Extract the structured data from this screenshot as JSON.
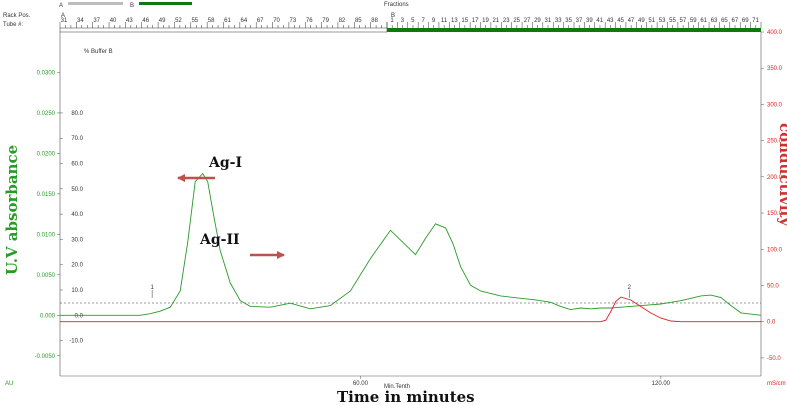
{
  "header": {
    "rack_pos_label": "Rack Pos.",
    "tube_label": "Tube #:",
    "fractions_label": "Fractions",
    "legend_a": "A",
    "legend_b": "B",
    "rack_a": "A",
    "rack_b": "B",
    "color_a": "#bdbdbd",
    "color_b": "#0e7a0e"
  },
  "axes": {
    "left_label": "U.V absorbance",
    "right_label": "conductivity",
    "x_label": "Time in minutes",
    "x_unit_label": "Min.Tenth",
    "left_unit": "AU",
    "right_unit": "mS/cm",
    "buffer_label": "% Buffer B"
  },
  "chart_data": {
    "type": "line",
    "x_range": [
      0,
      140
    ],
    "x_ticks": [
      {
        "value": 60,
        "label": "60.00"
      },
      {
        "value": 120,
        "label": "120.00"
      }
    ],
    "uv_axis": {
      "ylim": [
        -0.0075,
        0.035
      ],
      "ticks": [
        "0.0300",
        "0.0250",
        "0.0200",
        "0.0150",
        "0.0100",
        "0.0050",
        "0.000",
        "-0.0050"
      ],
      "tick_values": [
        0.03,
        0.025,
        0.02,
        0.015,
        0.01,
        0.005,
        0.0,
        -0.005
      ]
    },
    "buffer_axis": {
      "ticks": [
        "80.0",
        "70.0",
        "60.0",
        "50.0",
        "40.0",
        "30.0",
        "20.0",
        "10.0",
        "0.0",
        "-10.0"
      ],
      "tick_values": [
        80,
        70,
        60,
        50,
        40,
        30,
        20,
        10,
        0,
        -10
      ]
    },
    "conductivity_axis": {
      "ylim": [
        -75,
        400
      ],
      "ticks": [
        "400.0",
        "350.0",
        "300.0",
        "250.0",
        "200.0",
        "150.0",
        "100.0",
        "50.0",
        "0.0",
        "-50.0"
      ],
      "tick_values": [
        400,
        350,
        300,
        250,
        200,
        150,
        100,
        50,
        0,
        -50
      ]
    },
    "series": [
      {
        "name": "U.V absorbance",
        "color": "#2a9a2a",
        "x": [
          0,
          10,
          12,
          14,
          16,
          18,
          20,
          22,
          24,
          25.5,
          27,
          28.5,
          29.5,
          30.5,
          32,
          34,
          36,
          38,
          42,
          46,
          50,
          54,
          58,
          62,
          66,
          69,
          71,
          73,
          75,
          77,
          78.5,
          80,
          82,
          84,
          86,
          88,
          92,
          95,
          98,
          100,
          102,
          104,
          106,
          108,
          110,
          112,
          114,
          116,
          118,
          120,
          122,
          124,
          126,
          128,
          130,
          132,
          134,
          136,
          140
        ],
        "y": [
          0.0,
          0.0,
          0.0,
          0.0,
          0.0,
          0.0002,
          0.0005,
          0.001,
          0.003,
          0.009,
          0.0165,
          0.0175,
          0.0165,
          0.013,
          0.008,
          0.004,
          0.0018,
          0.0011,
          0.001,
          0.0015,
          0.0008,
          0.0012,
          0.003,
          0.007,
          0.0105,
          0.0087,
          0.0075,
          0.0095,
          0.0113,
          0.0108,
          0.0088,
          0.006,
          0.0037,
          0.003,
          0.0027,
          0.0024,
          0.0021,
          0.0019,
          0.0016,
          0.0011,
          0.0007,
          0.0009,
          0.0008,
          0.0009,
          0.0009,
          0.001,
          0.0011,
          0.0012,
          0.0013,
          0.0014,
          0.0016,
          0.0018,
          0.0021,
          0.0024,
          0.0025,
          0.0022,
          0.0012,
          0.0003,
          0.0
        ]
      },
      {
        "name": "conductivity",
        "color": "#e02020",
        "x": [
          0,
          100,
          104,
          106,
          108,
          109,
          110,
          111,
          112,
          114,
          116,
          118,
          120,
          122,
          124,
          126,
          130,
          140
        ],
        "y": [
          0,
          0,
          0,
          0,
          0,
          2,
          14,
          28,
          34,
          30,
          21,
          12,
          5,
          1,
          0,
          0,
          0,
          0
        ]
      }
    ],
    "annotations": [
      {
        "text": "Ag-I"
      },
      {
        "text": "Ag-II"
      }
    ],
    "markers": [
      {
        "x": 18.4,
        "text": "1"
      },
      {
        "x": 113.7,
        "text": "2"
      }
    ],
    "fraction_ticks": {
      "rack_a_first": 31,
      "rack_b_first": 1,
      "labels_a": [
        "31",
        "34",
        "37",
        "40",
        "43",
        "46",
        "49",
        "52",
        "55",
        "58",
        "61",
        "64",
        "67",
        "70",
        "73",
        "76",
        "79",
        "82",
        "85",
        "88"
      ],
      "labels_b": [
        "1",
        "3",
        "5",
        "7",
        "9",
        "11",
        "13",
        "15",
        "17",
        "19",
        "21",
        "23",
        "25",
        "27",
        "29",
        "31",
        "33",
        "35",
        "37",
        "39",
        "41",
        "43",
        "45",
        "47",
        "49",
        "51",
        "53",
        "55",
        "57",
        "59",
        "61",
        "63",
        "65",
        "67",
        "69",
        "71"
      ]
    }
  }
}
